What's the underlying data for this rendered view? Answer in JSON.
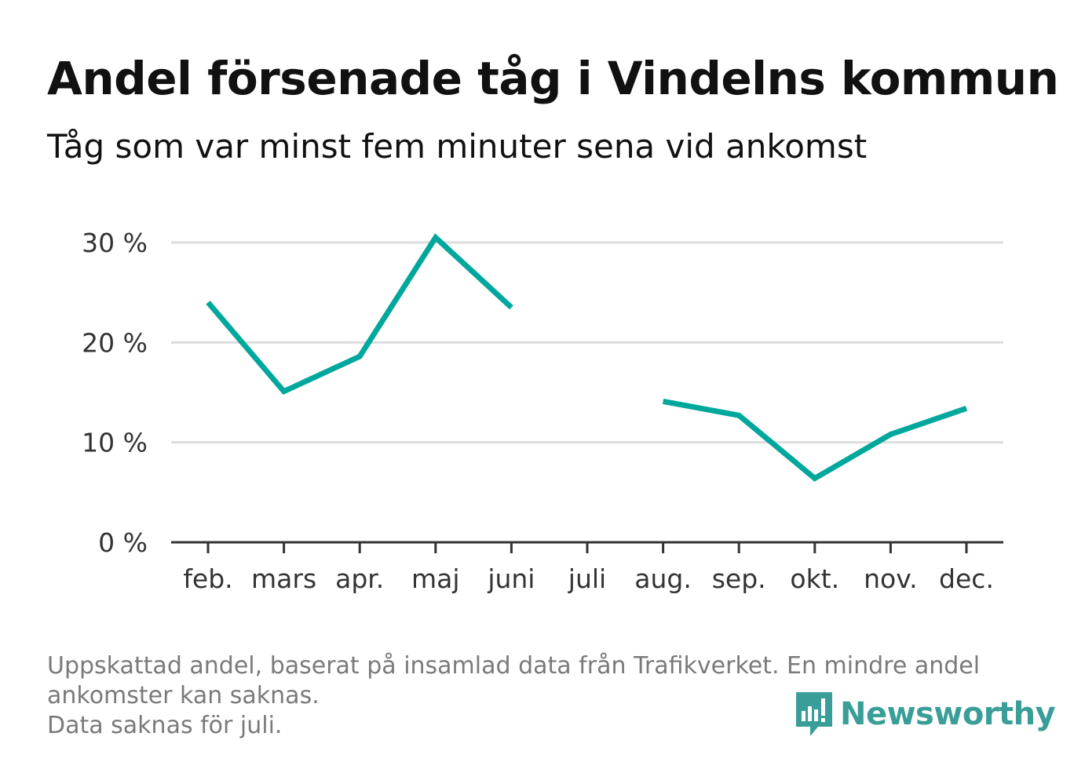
{
  "header": {
    "title": "Andel försenade tåg i Vindelns kommun",
    "subtitle": "Tåg som var minst fem minuter sena vid ankomst"
  },
  "chart_data": {
    "type": "line",
    "title": "Andel försenade tåg i Vindelns kommun",
    "subtitle": "Tåg som var minst fem minuter sena vid ankomst",
    "xlabel": "",
    "ylabel": "",
    "categories": [
      "feb.",
      "mars",
      "apr.",
      "maj",
      "juni",
      "juli",
      "aug.",
      "sep.",
      "okt.",
      "nov.",
      "dec."
    ],
    "series": [
      {
        "values": [
          24.0,
          15.1,
          18.6,
          30.5,
          23.5,
          null,
          14.1,
          12.7,
          6.4,
          10.8,
          13.4
        ]
      }
    ],
    "y_ticks": [
      0,
      10,
      20,
      30
    ],
    "y_tick_labels": [
      "0 %",
      "10 %",
      "20 %",
      "30 %"
    ],
    "ylim": [
      0,
      30
    ],
    "grid": true,
    "line_color": "#00a79d"
  },
  "footer": {
    "note_lines": [
      "Uppskattad andel, baserat på insamlad data från Trafikverket. En mindre andel",
      "ankomster kan saknas.",
      "Data saknas för juli."
    ],
    "brand": "Newsworthy",
    "brand_icon": "newsworthy-logo-icon",
    "brand_color": "#3a9e98"
  }
}
